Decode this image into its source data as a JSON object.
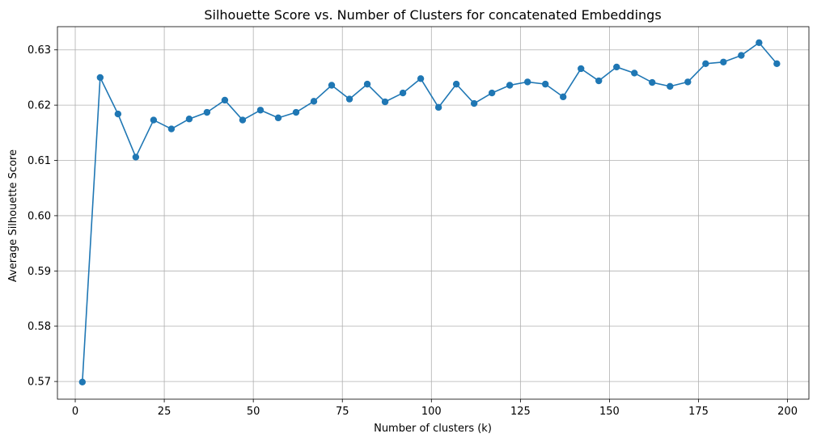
{
  "chart_data": {
    "type": "line",
    "title": "Silhouette Score vs. Number of Clusters for concatenated Embeddings",
    "xlabel": "Number of clusters (k)",
    "ylabel": "Average Silhouette Score",
    "xlim": [
      -5,
      206
    ],
    "ylim": [
      0.5668,
      0.6342
    ],
    "xticks": [
      0,
      25,
      50,
      75,
      100,
      125,
      150,
      175,
      200
    ],
    "yticks": [
      0.57,
      0.58,
      0.59,
      0.6,
      0.61,
      0.62,
      0.63
    ],
    "ytick_labels": [
      "0.57",
      "0.58",
      "0.59",
      "0.60",
      "0.61",
      "0.62",
      "0.63"
    ],
    "grid": true,
    "line_color": "#1f77b4",
    "marker": "circle",
    "series": [
      {
        "x": [
          2,
          7,
          12,
          17,
          22,
          27,
          32,
          37,
          42,
          47,
          52,
          57,
          62,
          67,
          72,
          77,
          82,
          87,
          92,
          97,
          102,
          107,
          112,
          117,
          122,
          127,
          132,
          137,
          142,
          147,
          152,
          157,
          162,
          167,
          172,
          177,
          182,
          187,
          192,
          197
        ],
        "y": [
          0.5699,
          0.625,
          0.6184,
          0.6106,
          0.6173,
          0.6157,
          0.6175,
          0.6187,
          0.6209,
          0.6173,
          0.6191,
          0.6177,
          0.6187,
          0.6207,
          0.6236,
          0.6211,
          0.6238,
          0.6206,
          0.6222,
          0.6248,
          0.6196,
          0.6238,
          0.6203,
          0.6222,
          0.6236,
          0.6242,
          0.6238,
          0.6215,
          0.6266,
          0.6244,
          0.6269,
          0.6258,
          0.6241,
          0.6234,
          0.6242,
          0.6275,
          0.6278,
          0.629,
          0.6313,
          0.6275
        ]
      }
    ]
  }
}
